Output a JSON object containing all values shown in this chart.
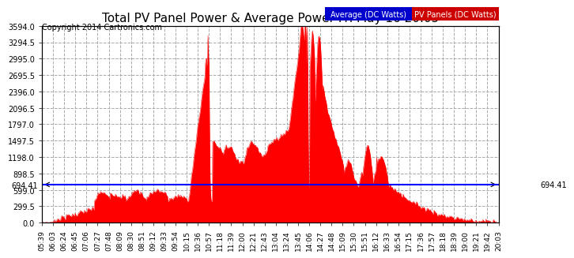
{
  "title": "Total PV Panel Power & Average Power Fri May 16 20:05",
  "copyright": "Copyright 2014 Cartronics.com",
  "average_value": 694.41,
  "y_max": 3594.0,
  "y_min": 0.0,
  "y_ticks": [
    0.0,
    299.5,
    599.0,
    898.5,
    1198.0,
    1497.5,
    1797.0,
    2096.5,
    2396.0,
    2695.5,
    2995.0,
    3294.5,
    3594.0
  ],
  "bg_color": "#ffffff",
  "plot_bg_color": "#ffffff",
  "grid_color": "#aaaaaa",
  "avg_line_color": "#0000ff",
  "pv_fill_color": "#ff0000",
  "avg_label": "Average (DC Watts)",
  "pv_label": "PV Panels (DC Watts)",
  "avg_label_bg": "#0000cc",
  "pv_label_bg": "#cc0000",
  "x_tick_labels": [
    "05:39",
    "06:03",
    "06:24",
    "06:45",
    "07:06",
    "07:27",
    "07:48",
    "08:09",
    "08:30",
    "08:51",
    "09:12",
    "09:33",
    "09:54",
    "10:15",
    "10:36",
    "10:57",
    "11:18",
    "11:39",
    "12:00",
    "12:21",
    "12:43",
    "13:04",
    "13:24",
    "13:45",
    "14:06",
    "14:27",
    "14:48",
    "15:09",
    "15:30",
    "15:51",
    "16:12",
    "16:33",
    "16:54",
    "17:15",
    "17:36",
    "17:57",
    "18:18",
    "18:39",
    "19:00",
    "19:21",
    "19:42",
    "20:03"
  ]
}
